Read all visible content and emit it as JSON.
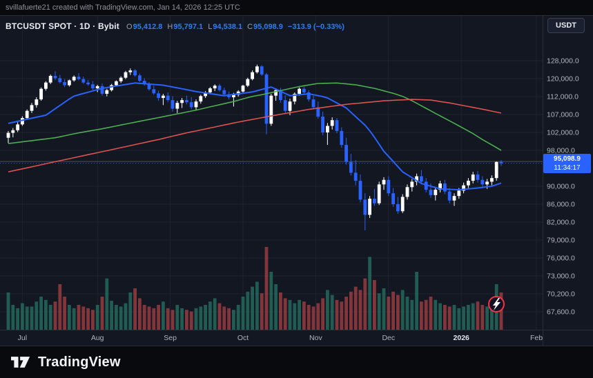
{
  "header": {
    "attribution": "svillafuerte21 created with TradingView.com, Jan 14, 2026 12:25 UTC"
  },
  "legend": {
    "symbol": "BTCUSDT SPOT · 1D · Bybit",
    "ohlc": [
      {
        "label": "O",
        "value": "95,412.8"
      },
      {
        "label": "H",
        "value": "95,797.1"
      },
      {
        "label": "L",
        "value": "94,538.1"
      },
      {
        "label": "C",
        "value": "95,098.9"
      }
    ],
    "change": "−313.9 (−0.33%)",
    "value_color": "#2e7df6"
  },
  "toolbar": {
    "currency_label": "USDT"
  },
  "price_badge": {
    "price": "95,098.9",
    "countdown": "11:34:17"
  },
  "footer": {
    "brand": "TradingView"
  },
  "chart_data": {
    "type": "candlestick",
    "title": "BTCUSDT SPOT · 1D · Bybit",
    "interval": "1D",
    "exchange": "Bybit",
    "scale": "logarithmic",
    "last_price": 95098.9,
    "horizontal_line_price": 95500,
    "colors": {
      "up": "#ffffff",
      "down": "#2962ff",
      "vol_up": "rgba(44,150,120,0.55)",
      "vol_down": "rgba(222,80,80,0.55)",
      "grid": "#1d2330",
      "axis_text": "#b2b5be",
      "price_line": "#2962ff",
      "frame": "#2a2e39",
      "ring": "#f23645"
    },
    "price_axis": {
      "anchors": [
        [
          128000,
          66,
          "128,000.0"
        ],
        [
          120000,
          92,
          "120,000.0"
        ],
        [
          112000,
          118,
          "112,000.0"
        ],
        [
          107000,
          144,
          "107,000.0"
        ],
        [
          102000,
          170,
          "102,000.0"
        ],
        [
          98000,
          196,
          "98,000.0"
        ],
        [
          94000,
          222,
          null
        ],
        [
          90000,
          248,
          "90,000.0"
        ],
        [
          86000,
          274,
          "86,000.0"
        ],
        [
          82000,
          300,
          "82,000.0"
        ],
        [
          79000,
          326,
          "79,000.0"
        ],
        [
          76000,
          352,
          "76,000.0"
        ],
        [
          73000,
          378,
          "73,000.0"
        ],
        [
          70200,
          404,
          "70,200.0"
        ],
        [
          67600,
          430,
          "67,600.0"
        ]
      ]
    },
    "time_axis": {
      "ticks": [
        {
          "label": "Jul",
          "i": 3
        },
        {
          "label": "Aug",
          "i": 19
        },
        {
          "label": "Sep",
          "i": 34.5
        },
        {
          "label": "Oct",
          "i": 50
        },
        {
          "label": "Nov",
          "i": 65.5
        },
        {
          "label": "Dec",
          "i": 81
        },
        {
          "label": "2026",
          "i": 96.5,
          "strong": true
        },
        {
          "label": "Feb",
          "i": 112.5
        }
      ]
    },
    "candles": [
      [
        100800,
        102400,
        99600,
        101900
      ],
      [
        101900,
        103200,
        100900,
        102600
      ],
      [
        102600,
        104800,
        102100,
        104200
      ],
      [
        104200,
        106500,
        103800,
        106000
      ],
      [
        106000,
        108400,
        105600,
        108000
      ],
      [
        108000,
        110200,
        107400,
        109600
      ],
      [
        109600,
        111800,
        108900,
        111200
      ],
      [
        111200,
        116000,
        110800,
        115400
      ],
      [
        115400,
        118800,
        114600,
        118200
      ],
      [
        118200,
        121800,
        117500,
        121200
      ],
      [
        121200,
        123200,
        119400,
        120200
      ],
      [
        120200,
        121600,
        117800,
        118400
      ],
      [
        118400,
        119800,
        116200,
        117000
      ],
      [
        117000,
        119600,
        116400,
        119200
      ],
      [
        119200,
        121400,
        118600,
        120800
      ],
      [
        120800,
        122400,
        119200,
        119800
      ],
      [
        119800,
        120900,
        117600,
        118200
      ],
      [
        118200,
        119400,
        116800,
        117400
      ],
      [
        117400,
        118900,
        114800,
        115600
      ],
      [
        115600,
        117200,
        113900,
        116600
      ],
      [
        116600,
        117800,
        112400,
        113200
      ],
      [
        113200,
        115400,
        112100,
        114800
      ],
      [
        114800,
        117600,
        114200,
        117000
      ],
      [
        117000,
        119200,
        116400,
        118800
      ],
      [
        118800,
        121000,
        118000,
        120400
      ],
      [
        120400,
        123400,
        119800,
        122800
      ],
      [
        122800,
        124500,
        121600,
        123600
      ],
      [
        123600,
        124200,
        120800,
        121400
      ],
      [
        121400,
        122200,
        118400,
        119000
      ],
      [
        119000,
        120200,
        116800,
        117400
      ],
      [
        117400,
        118400,
        114600,
        115200
      ],
      [
        115200,
        116800,
        112800,
        113400
      ],
      [
        113400,
        114600,
        110800,
        111600
      ],
      [
        111600,
        113200,
        109600,
        112400
      ],
      [
        112400,
        113800,
        110400,
        111000
      ],
      [
        111000,
        112200,
        107800,
        108600
      ],
      [
        108600,
        110800,
        107400,
        110200
      ],
      [
        110200,
        111600,
        108800,
        111000
      ],
      [
        111000,
        112400,
        109800,
        110400
      ],
      [
        110400,
        111800,
        108400,
        109000
      ],
      [
        109000,
        111200,
        108200,
        110600
      ],
      [
        110600,
        112800,
        110000,
        112200
      ],
      [
        112200,
        114400,
        111600,
        113800
      ],
      [
        113800,
        116200,
        113000,
        115600
      ],
      [
        115600,
        117400,
        114400,
        116800
      ],
      [
        116800,
        117600,
        114200,
        114800
      ],
      [
        114800,
        115900,
        112400,
        113000
      ],
      [
        113000,
        114200,
        111200,
        111800
      ],
      [
        111800,
        113600,
        109200,
        112800
      ],
      [
        112800,
        114800,
        112000,
        114200
      ],
      [
        114200,
        117200,
        113800,
        116800
      ],
      [
        116800,
        120400,
        116200,
        119800
      ],
      [
        119800,
        123600,
        119200,
        122800
      ],
      [
        122800,
        126200,
        122200,
        125400
      ],
      [
        125400,
        126000,
        121200,
        121800
      ],
      [
        121800,
        122400,
        101600,
        104400
      ],
      [
        104400,
        113200,
        103800,
        112400
      ],
      [
        112400,
        115600,
        110800,
        114800
      ],
      [
        114800,
        115800,
        110200,
        111000
      ],
      [
        111000,
        112600,
        107200,
        108000
      ],
      [
        108000,
        111400,
        106800,
        110600
      ],
      [
        110600,
        113800,
        109800,
        113200
      ],
      [
        113200,
        116000,
        112400,
        115400
      ],
      [
        115400,
        116400,
        113200,
        113800
      ],
      [
        113800,
        114800,
        110600,
        111200
      ],
      [
        111200,
        112400,
        108400,
        109000
      ],
      [
        109000,
        110600,
        105800,
        106400
      ],
      [
        106400,
        107800,
        101400,
        102000
      ],
      [
        102000,
        104600,
        99200,
        103800
      ],
      [
        103800,
        106200,
        102800,
        105400
      ],
      [
        105400,
        106000,
        101800,
        102400
      ],
      [
        102400,
        103400,
        98600,
        99200
      ],
      [
        99200,
        100800,
        94800,
        95400
      ],
      [
        95400,
        97200,
        92400,
        93000
      ],
      [
        93000,
        95800,
        90200,
        91200
      ],
      [
        91200,
        92600,
        86400,
        87000
      ],
      [
        87000,
        88400,
        80600,
        83600
      ],
      [
        83600,
        87800,
        82900,
        87200
      ],
      [
        87200,
        89400,
        85600,
        86200
      ],
      [
        86200,
        91000,
        85800,
        90400
      ],
      [
        90400,
        92000,
        89200,
        91400
      ],
      [
        91400,
        92200,
        87800,
        88400
      ],
      [
        88400,
        89600,
        85400,
        86000
      ],
      [
        86000,
        87600,
        83800,
        84400
      ],
      [
        84400,
        88200,
        84000,
        87600
      ],
      [
        87600,
        90400,
        87000,
        89800
      ],
      [
        89800,
        91600,
        88800,
        91000
      ],
      [
        91000,
        92800,
        90200,
        92200
      ],
      [
        92200,
        93600,
        90400,
        91000
      ],
      [
        91000,
        91800,
        88600,
        89200
      ],
      [
        89200,
        90600,
        87400,
        88000
      ],
      [
        88000,
        89800,
        86800,
        89200
      ],
      [
        89200,
        91200,
        88600,
        90600
      ],
      [
        90600,
        91400,
        88200,
        88800
      ],
      [
        88800,
        89600,
        86200,
        86800
      ],
      [
        86800,
        88400,
        85600,
        87800
      ],
      [
        87800,
        89600,
        87200,
        89000
      ],
      [
        89000,
        90800,
        88400,
        90200
      ],
      [
        90200,
        91800,
        89600,
        91200
      ],
      [
        91200,
        93200,
        90600,
        92600
      ],
      [
        92600,
        93400,
        90800,
        91400
      ],
      [
        91400,
        92200,
        89800,
        90400
      ],
      [
        90400,
        91600,
        89400,
        91000
      ],
      [
        91000,
        92400,
        90200,
        91800
      ],
      [
        91800,
        95500,
        91200,
        95400
      ],
      [
        95412.8,
        95797.1,
        94538.1,
        95098.9
      ]
    ],
    "volumes": [
      45,
      30,
      26,
      32,
      28,
      28,
      34,
      40,
      36,
      30,
      34,
      55,
      40,
      30,
      26,
      30,
      28,
      26,
      24,
      30,
      40,
      62,
      35,
      30,
      28,
      32,
      45,
      50,
      38,
      30,
      28,
      26,
      30,
      34,
      26,
      24,
      30,
      26,
      24,
      22,
      26,
      28,
      30,
      34,
      38,
      32,
      28,
      26,
      24,
      30,
      40,
      46,
      52,
      58,
      44,
      100,
      70,
      55,
      45,
      38,
      36,
      32,
      36,
      34,
      30,
      28,
      32,
      38,
      48,
      42,
      36,
      34,
      40,
      46,
      52,
      48,
      62,
      88,
      60,
      44,
      50,
      40,
      46,
      42,
      48,
      40,
      36,
      70,
      34,
      36,
      40,
      36,
      32,
      30,
      28,
      30,
      26,
      28,
      30,
      32,
      34,
      30,
      28,
      26,
      55,
      45
    ],
    "moving_averages": [
      {
        "name": "ma-fast",
        "color": "#2962ff",
        "width": 2,
        "anchors": [
          [
            0,
            104500
          ],
          [
            8,
            106800
          ],
          [
            14,
            112200
          ],
          [
            20,
            115600
          ],
          [
            27,
            118000
          ],
          [
            33,
            117000
          ],
          [
            40,
            114200
          ],
          [
            46,
            112400
          ],
          [
            52,
            114000
          ],
          [
            56,
            116200
          ],
          [
            60,
            112400
          ],
          [
            64,
            113200
          ],
          [
            68,
            111600
          ],
          [
            72,
            108800
          ],
          [
            76,
            104000
          ],
          [
            80,
            97800
          ],
          [
            84,
            93200
          ],
          [
            88,
            90600
          ],
          [
            92,
            89400
          ],
          [
            96,
            89200
          ],
          [
            100,
            89600
          ],
          [
            103,
            90000
          ],
          [
            105,
            90700
          ]
        ]
      },
      {
        "name": "ma-medium",
        "color": "#4caf50",
        "width": 1.6,
        "anchors": [
          [
            0,
            99500
          ],
          [
            10,
            100800
          ],
          [
            20,
            103000
          ],
          [
            30,
            105600
          ],
          [
            40,
            108200
          ],
          [
            48,
            110600
          ],
          [
            54,
            112800
          ],
          [
            58,
            114600
          ],
          [
            62,
            116400
          ],
          [
            66,
            117800
          ],
          [
            70,
            118000
          ],
          [
            74,
            117200
          ],
          [
            78,
            115600
          ],
          [
            82,
            113400
          ],
          [
            86,
            110800
          ],
          [
            90,
            108000
          ],
          [
            94,
            105200
          ],
          [
            98,
            102400
          ],
          [
            101,
            100400
          ],
          [
            103,
            99200
          ],
          [
            105,
            98000
          ]
        ]
      },
      {
        "name": "ma-slow",
        "color": "#e0524e",
        "width": 1.6,
        "anchors": [
          [
            0,
            93200
          ],
          [
            8,
            95000
          ],
          [
            16,
            96800
          ],
          [
            24,
            98600
          ],
          [
            32,
            100400
          ],
          [
            40,
            102400
          ],
          [
            48,
            104600
          ],
          [
            56,
            106600
          ],
          [
            64,
            108400
          ],
          [
            72,
            109800
          ],
          [
            80,
            110800
          ],
          [
            86,
            111200
          ],
          [
            90,
            111000
          ],
          [
            94,
            110200
          ],
          [
            98,
            109200
          ],
          [
            102,
            108200
          ],
          [
            105,
            107400
          ]
        ]
      }
    ]
  }
}
